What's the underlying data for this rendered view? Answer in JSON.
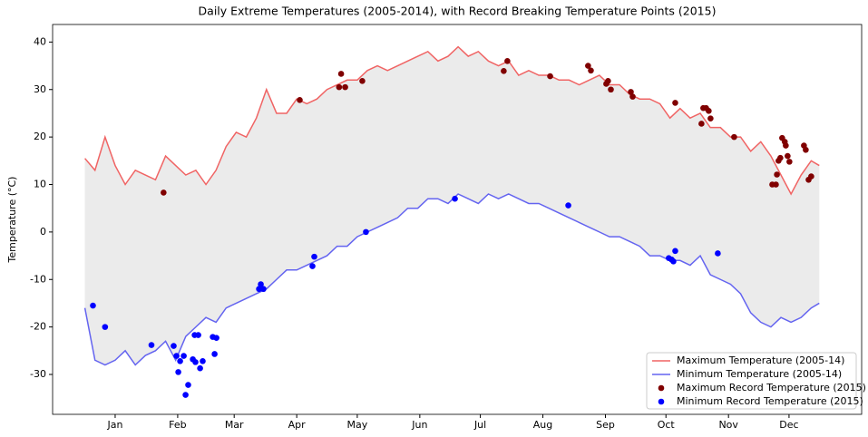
{
  "chart_data": {
    "type": "line",
    "title": "Daily Extreme Temperatures (2005-2014), with Record Breaking Temperature Points (2015)",
    "y_label": "Temperature (°C)",
    "x": [
      0,
      5,
      10,
      15,
      20,
      25,
      30,
      35,
      40,
      45,
      50,
      55,
      60,
      65,
      70,
      75,
      80,
      85,
      90,
      95,
      100,
      105,
      110,
      115,
      120,
      125,
      130,
      135,
      140,
      145,
      150,
      155,
      160,
      165,
      170,
      175,
      180,
      185,
      190,
      195,
      200,
      205,
      210,
      215,
      220,
      225,
      230,
      235,
      240,
      245,
      250,
      255,
      260,
      265,
      270,
      275,
      280,
      285,
      290,
      295,
      300,
      305,
      310,
      315,
      320,
      325,
      330,
      335,
      340,
      345,
      350,
      355,
      360,
      364
    ],
    "xlim": [
      -16,
      385
    ],
    "xticks": [
      {
        "value": 15,
        "label": "Jan"
      },
      {
        "value": 46,
        "label": "Feb"
      },
      {
        "value": 74,
        "label": "Mar"
      },
      {
        "value": 105,
        "label": "Apr"
      },
      {
        "value": 135,
        "label": "May"
      },
      {
        "value": 166,
        "label": "Jun"
      },
      {
        "value": 196,
        "label": "Jul"
      },
      {
        "value": 227,
        "label": "Aug"
      },
      {
        "value": 258,
        "label": "Sep"
      },
      {
        "value": 288,
        "label": "Oct"
      },
      {
        "value": 319,
        "label": "Nov"
      },
      {
        "value": 349,
        "label": "Dec"
      }
    ],
    "ylim": [
      -38.4,
      43.7
    ],
    "yticks": [
      -30,
      -20,
      -10,
      0,
      10,
      20,
      30,
      40
    ],
    "fill_between": true,
    "fill_color": "#ebebeb",
    "legend": "lower right",
    "series": [
      {
        "name": "Maximum Temperature (2005-14)",
        "type": "line",
        "color": "#f06464",
        "values": [
          15.5,
          13,
          20,
          14,
          10,
          13,
          12,
          11,
          16,
          14,
          12,
          13,
          10,
          13,
          18,
          21,
          20,
          24,
          30,
          25,
          25,
          28,
          27,
          28,
          30,
          31,
          32,
          32,
          34,
          35,
          34,
          35,
          36,
          37,
          38,
          36,
          37,
          39,
          37,
          38,
          36,
          35,
          36,
          33,
          34,
          33,
          33,
          32,
          32,
          31,
          32,
          33,
          31,
          31,
          29,
          28,
          28,
          27,
          24,
          26,
          24,
          25,
          22,
          22,
          20,
          20,
          17,
          19,
          16,
          12,
          8,
          12,
          15,
          14
        ]
      },
      {
        "name": "Minimum Temperature (2005-14)",
        "type": "line",
        "color": "#6464f0",
        "values": [
          -16,
          -27,
          -28,
          -27,
          -25,
          -28,
          -26,
          -25,
          -23,
          -27,
          -22,
          -20,
          -18,
          -19,
          -16,
          -15,
          -14,
          -13,
          -12,
          -10,
          -8,
          -8,
          -7,
          -6,
          -5,
          -3,
          -3,
          -1,
          0,
          1,
          2,
          3,
          5,
          5,
          7,
          7,
          6,
          8,
          7,
          6,
          8,
          7,
          8,
          7,
          6,
          6,
          5,
          4,
          3,
          2,
          1,
          0,
          -1,
          -1,
          -2,
          -3,
          -5,
          -5,
          -6,
          -6,
          -7,
          -5,
          -9,
          -10,
          -11,
          -13,
          -17,
          -19,
          -20,
          -18,
          -19,
          -18,
          -16,
          -15
        ]
      },
      {
        "name": "Maximum Record Temperature (2015)",
        "type": "scatter",
        "color": "#800000",
        "x": [
          39,
          106.5,
          126,
          127,
          129,
          137.5,
          207.6,
          209.4,
          230.6,
          249.4,
          250.8,
          258.4,
          259.3,
          260.7,
          270.6,
          271.5,
          292.6,
          305.6,
          306.5,
          307.9,
          309.2,
          310.1,
          321.8,
          340.7,
          342.5,
          343,
          343.8,
          344.7,
          345.6,
          346.9,
          347.4,
          348.3,
          349.2,
          356.4,
          357.3,
          358.7,
          360
        ],
        "values": [
          8.3,
          27.8,
          30.5,
          33.3,
          30.5,
          31.8,
          33.9,
          36,
          32.8,
          35,
          34,
          31.2,
          31.8,
          30,
          29.5,
          28.5,
          27.2,
          22.8,
          26.1,
          26.1,
          25.5,
          23.9,
          20,
          10,
          10,
          12.1,
          15,
          15.6,
          19.8,
          19,
          18.2,
          16,
          14.8,
          18.2,
          17.3,
          11,
          11.7
        ]
      },
      {
        "name": "Minimum Record Temperature (2015)",
        "type": "scatter",
        "color": "#0000ff",
        "x": [
          4,
          10,
          33,
          44,
          45.4,
          46.3,
          47.2,
          49,
          49.9,
          51.2,
          53.5,
          54.4,
          54.8,
          56.2,
          57.1,
          58.4,
          63.4,
          64.3,
          65.2,
          86.3,
          87.2,
          88.5,
          112.8,
          113.7,
          139.3,
          183.4,
          239.6,
          289.4,
          290.8,
          291.7,
          292.6,
          313.7
        ],
        "values": [
          -15.5,
          -20,
          -23.8,
          -24,
          -26.1,
          -29.5,
          -27.2,
          -26.1,
          -34.3,
          -32.2,
          -26.8,
          -21.7,
          -27.4,
          -21.7,
          -28.7,
          -27.2,
          -22.1,
          -25.7,
          -22.3,
          -12,
          -11,
          -12,
          -7.2,
          -5.2,
          0,
          7,
          5.6,
          -5.5,
          -5.8,
          -6.2,
          -4,
          -4.5
        ]
      }
    ]
  }
}
